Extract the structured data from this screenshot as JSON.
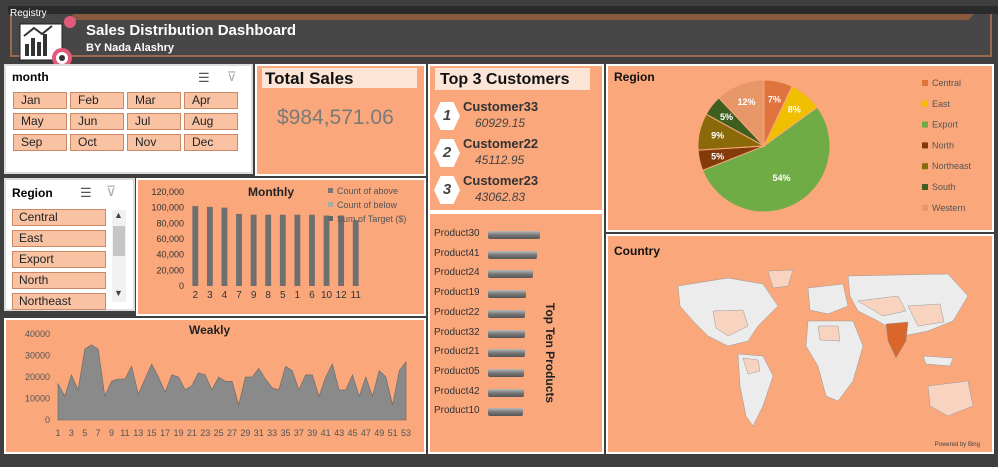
{
  "header": {
    "title": "Sales Distribution Dashboard",
    "subtitle": "BY Nada Alashry",
    "logo_text": "Registry"
  },
  "month_slicer": {
    "title": "month",
    "items": [
      "Jan",
      "Feb",
      "Mar",
      "Apr",
      "May",
      "Jun",
      "Jul",
      "Aug",
      "Sep",
      "Oct",
      "Nov",
      "Dec"
    ]
  },
  "region_slicer": {
    "title": "Region",
    "items": [
      "Central",
      "East",
      "Export",
      "North",
      "Northeast"
    ]
  },
  "total_sales": {
    "title": "Total Sales",
    "value": "$984,571.06"
  },
  "top_customers": {
    "title": "Top 3 Customers",
    "items": [
      {
        "rank": "1",
        "name": "Customer33",
        "value": "60929.15"
      },
      {
        "rank": "2",
        "name": "Customer22",
        "value": "45112.95"
      },
      {
        "rank": "3",
        "name": "Customer23",
        "value": "43062.83"
      }
    ]
  },
  "region_chart": {
    "title": "Region",
    "legend": [
      "Central",
      "East",
      "Export",
      "North",
      "Northeast",
      "South",
      "Western"
    ]
  },
  "country_map": {
    "title": "Country",
    "credit": "Powered by Bing"
  },
  "top_products": {
    "title": "Top Ten Products",
    "items": [
      "Product30",
      "Product41",
      "Product24",
      "Product19",
      "Product22",
      "Product32",
      "Product21",
      "Product05",
      "Product42",
      "Product10"
    ]
  },
  "chart_data": [
    {
      "type": "bar",
      "title": "Monthly",
      "categories": [
        "2",
        "3",
        "4",
        "7",
        "9",
        "8",
        "5",
        "1",
        "6",
        "10",
        "12",
        "11"
      ],
      "values": [
        102000,
        101000,
        100000,
        92000,
        91000,
        91000,
        91000,
        91000,
        91000,
        90000,
        90000,
        84000
      ],
      "ylim": [
        0,
        120000
      ],
      "yticks": [
        "120,000",
        "100,000",
        "80,000",
        "60,000",
        "40,000",
        "20,000",
        "0"
      ],
      "legend": [
        "Count of above",
        "Count of below",
        "Sum of Target ($)"
      ]
    },
    {
      "type": "area",
      "title": "Weakly",
      "x": [
        1,
        2,
        3,
        4,
        5,
        6,
        7,
        8,
        9,
        10,
        11,
        12,
        13,
        14,
        15,
        16,
        17,
        18,
        19,
        20,
        21,
        22,
        23,
        24,
        25,
        26,
        27,
        28,
        29,
        30,
        31,
        32,
        33,
        34,
        35,
        36,
        37,
        38,
        39,
        40,
        41,
        42,
        43,
        44,
        45,
        46,
        47,
        48,
        49,
        50,
        51,
        52,
        53
      ],
      "values": [
        17000,
        11000,
        21000,
        14000,
        33000,
        35000,
        33000,
        11000,
        18000,
        19000,
        19000,
        25000,
        12000,
        19000,
        26000,
        20000,
        13000,
        21000,
        20000,
        14000,
        16000,
        22000,
        21000,
        14000,
        20000,
        18000,
        18000,
        7000,
        20000,
        20000,
        24000,
        19000,
        15000,
        14000,
        25000,
        23000,
        14000,
        21000,
        21000,
        11000,
        20000,
        26000,
        14000,
        14000,
        21000,
        11000,
        20000,
        11000,
        23000,
        20000,
        7000,
        23000,
        27000
      ],
      "ylim": [
        0,
        40000
      ],
      "yticks": [
        "40000",
        "30000",
        "20000",
        "10000",
        "0"
      ],
      "xticks": [
        "1",
        "3",
        "5",
        "7",
        "9",
        "11",
        "13",
        "15",
        "17",
        "19",
        "21",
        "23",
        "25",
        "27",
        "29",
        "31",
        "33",
        "35",
        "37",
        "39",
        "41",
        "43",
        "45",
        "47",
        "49",
        "51",
        "53"
      ]
    },
    {
      "type": "pie",
      "title": "Region",
      "labels": [
        "Central",
        "East",
        "Export",
        "North",
        "Northeast",
        "South",
        "Western"
      ],
      "values": [
        7,
        8,
        54,
        5,
        9,
        5,
        12
      ],
      "value_labels": [
        "7%",
        "8%",
        "54%",
        "5%",
        "9%",
        "5%",
        "12%"
      ],
      "colors": [
        "#e0743e",
        "#f0c000",
        "#6fac46",
        "#833b0b",
        "#8a6a08",
        "#3f5f20",
        "#e89868"
      ]
    },
    {
      "type": "bar",
      "title": "Top Ten Products",
      "categories": [
        "Product30",
        "Product41",
        "Product24",
        "Product19",
        "Product22",
        "Product32",
        "Product21",
        "Product05",
        "Product42",
        "Product10"
      ],
      "values": [
        100,
        95,
        86,
        74,
        72,
        72,
        71,
        70,
        69,
        68
      ]
    }
  ]
}
